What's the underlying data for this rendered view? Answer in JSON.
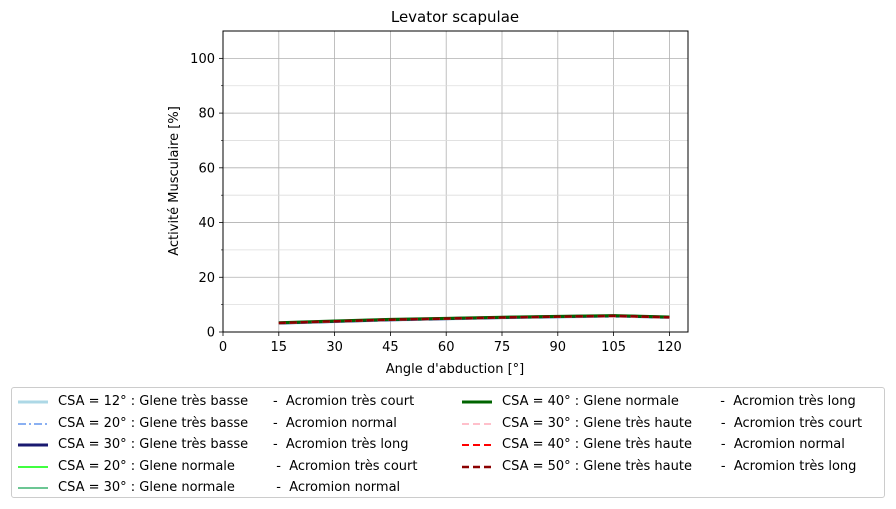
{
  "chart_data": {
    "type": "line",
    "title": "Levator scapulae",
    "xlabel": "Angle d'abduction [°]",
    "ylabel": "Activité Musculaire [%]",
    "xlim": [
      0,
      125
    ],
    "ylim": [
      0,
      110
    ],
    "xticks": [
      0,
      15,
      30,
      45,
      60,
      75,
      90,
      105,
      120
    ],
    "yticks": [
      0,
      20,
      40,
      60,
      80,
      100
    ],
    "yminor": [
      10,
      30,
      50,
      70,
      90
    ],
    "grid": true,
    "legend_position": "below",
    "x": [
      15,
      30,
      45,
      60,
      75,
      90,
      105,
      120
    ],
    "series": [
      {
        "name": "CSA = 12° : Glene très basse      -  Acromion très court",
        "color": "#add8e6",
        "style": "solid",
        "width": 3,
        "values": [
          3.2,
          3.8,
          4.4,
          4.8,
          5.2,
          5.5,
          5.8,
          5.3
        ]
      },
      {
        "name": "CSA = 20° : Glene très basse      -  Acromion normal",
        "color": "#6495ed",
        "style": "dashdot",
        "width": 1.5,
        "values": [
          3.2,
          3.8,
          4.4,
          4.8,
          5.2,
          5.5,
          5.8,
          5.3
        ]
      },
      {
        "name": "CSA = 30° : Glene très basse      -  Acromion très long",
        "color": "#191970",
        "style": "solid",
        "width": 3,
        "values": [
          3.3,
          3.9,
          4.5,
          4.9,
          5.3,
          5.6,
          5.9,
          5.4
        ]
      },
      {
        "name": "CSA = 20° : Glene normale          -  Acromion très court",
        "color": "#00ff00",
        "style": "solid",
        "width": 1.5,
        "values": [
          3.2,
          3.8,
          4.4,
          4.8,
          5.2,
          5.5,
          5.8,
          5.3
        ]
      },
      {
        "name": "CSA = 30° : Glene normale          -  Acromion normal",
        "color": "#3cb371",
        "style": "solid",
        "width": 1.5,
        "values": [
          3.3,
          3.9,
          4.5,
          4.9,
          5.3,
          5.6,
          5.9,
          5.4
        ]
      },
      {
        "name": "CSA = 40° : Glene normale          -  Acromion très long",
        "color": "#006400",
        "style": "solid",
        "width": 3,
        "values": [
          3.4,
          4.0,
          4.6,
          5.0,
          5.4,
          5.7,
          6.0,
          5.5
        ]
      },
      {
        "name": "CSA = 30° : Glene très haute       -  Acromion très court",
        "color": "#ffc0cb",
        "style": "dashed",
        "width": 2,
        "values": [
          3.2,
          3.8,
          4.4,
          4.8,
          5.2,
          5.5,
          5.7,
          5.2
        ]
      },
      {
        "name": "CSA = 40° : Glene très haute       -  Acromion normal",
        "color": "#ff0000",
        "style": "dashed",
        "width": 2,
        "values": [
          3.3,
          3.9,
          4.5,
          4.9,
          5.3,
          5.6,
          5.8,
          5.3
        ]
      },
      {
        "name": "CSA = 50° : Glene très haute       -  Acromion très long",
        "color": "#8b0000",
        "style": "dashed",
        "width": 2.5,
        "values": [
          3.3,
          3.9,
          4.5,
          4.9,
          5.3,
          5.6,
          5.9,
          5.4
        ]
      }
    ]
  }
}
